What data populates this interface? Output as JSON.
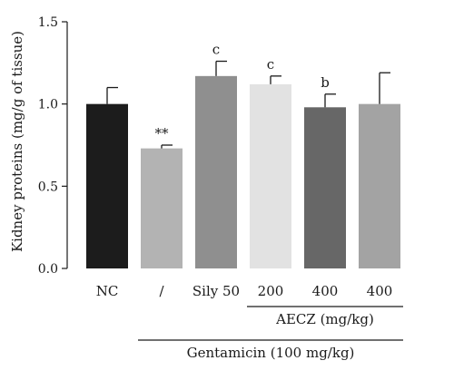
{
  "chart_data": {
    "type": "bar",
    "title": "",
    "ylabel": "Kidney proteins (mg/g of tissue)",
    "xlabel": "",
    "ylim": [
      0,
      1.5
    ],
    "yticks": [
      0.0,
      0.5,
      1.0,
      1.5
    ],
    "ytick_labels": [
      "0.0",
      "0.5",
      "1.0",
      "1.5"
    ],
    "categories": [
      "NC",
      "/",
      "Sily 50",
      "200",
      "400",
      "400"
    ],
    "values": [
      1.0,
      0.73,
      1.17,
      1.12,
      0.98,
      1.0
    ],
    "errors": [
      0.1,
      0.02,
      0.09,
      0.05,
      0.08,
      0.19
    ],
    "annotations": [
      "",
      "**",
      "c",
      "c",
      "b",
      ""
    ],
    "colors": [
      "#1c1c1c",
      "#b3b3b3",
      "#8f8f8f",
      "#e2e2e2",
      "#676767",
      "#a3a3a3"
    ],
    "grid": false,
    "legend": "none",
    "group_labels": [
      {
        "label": "AECZ (mg/kg)",
        "from": 3,
        "to": 5
      },
      {
        "label": "Gentamicin (100 mg/kg)",
        "from": 1,
        "to": 5
      }
    ]
  }
}
